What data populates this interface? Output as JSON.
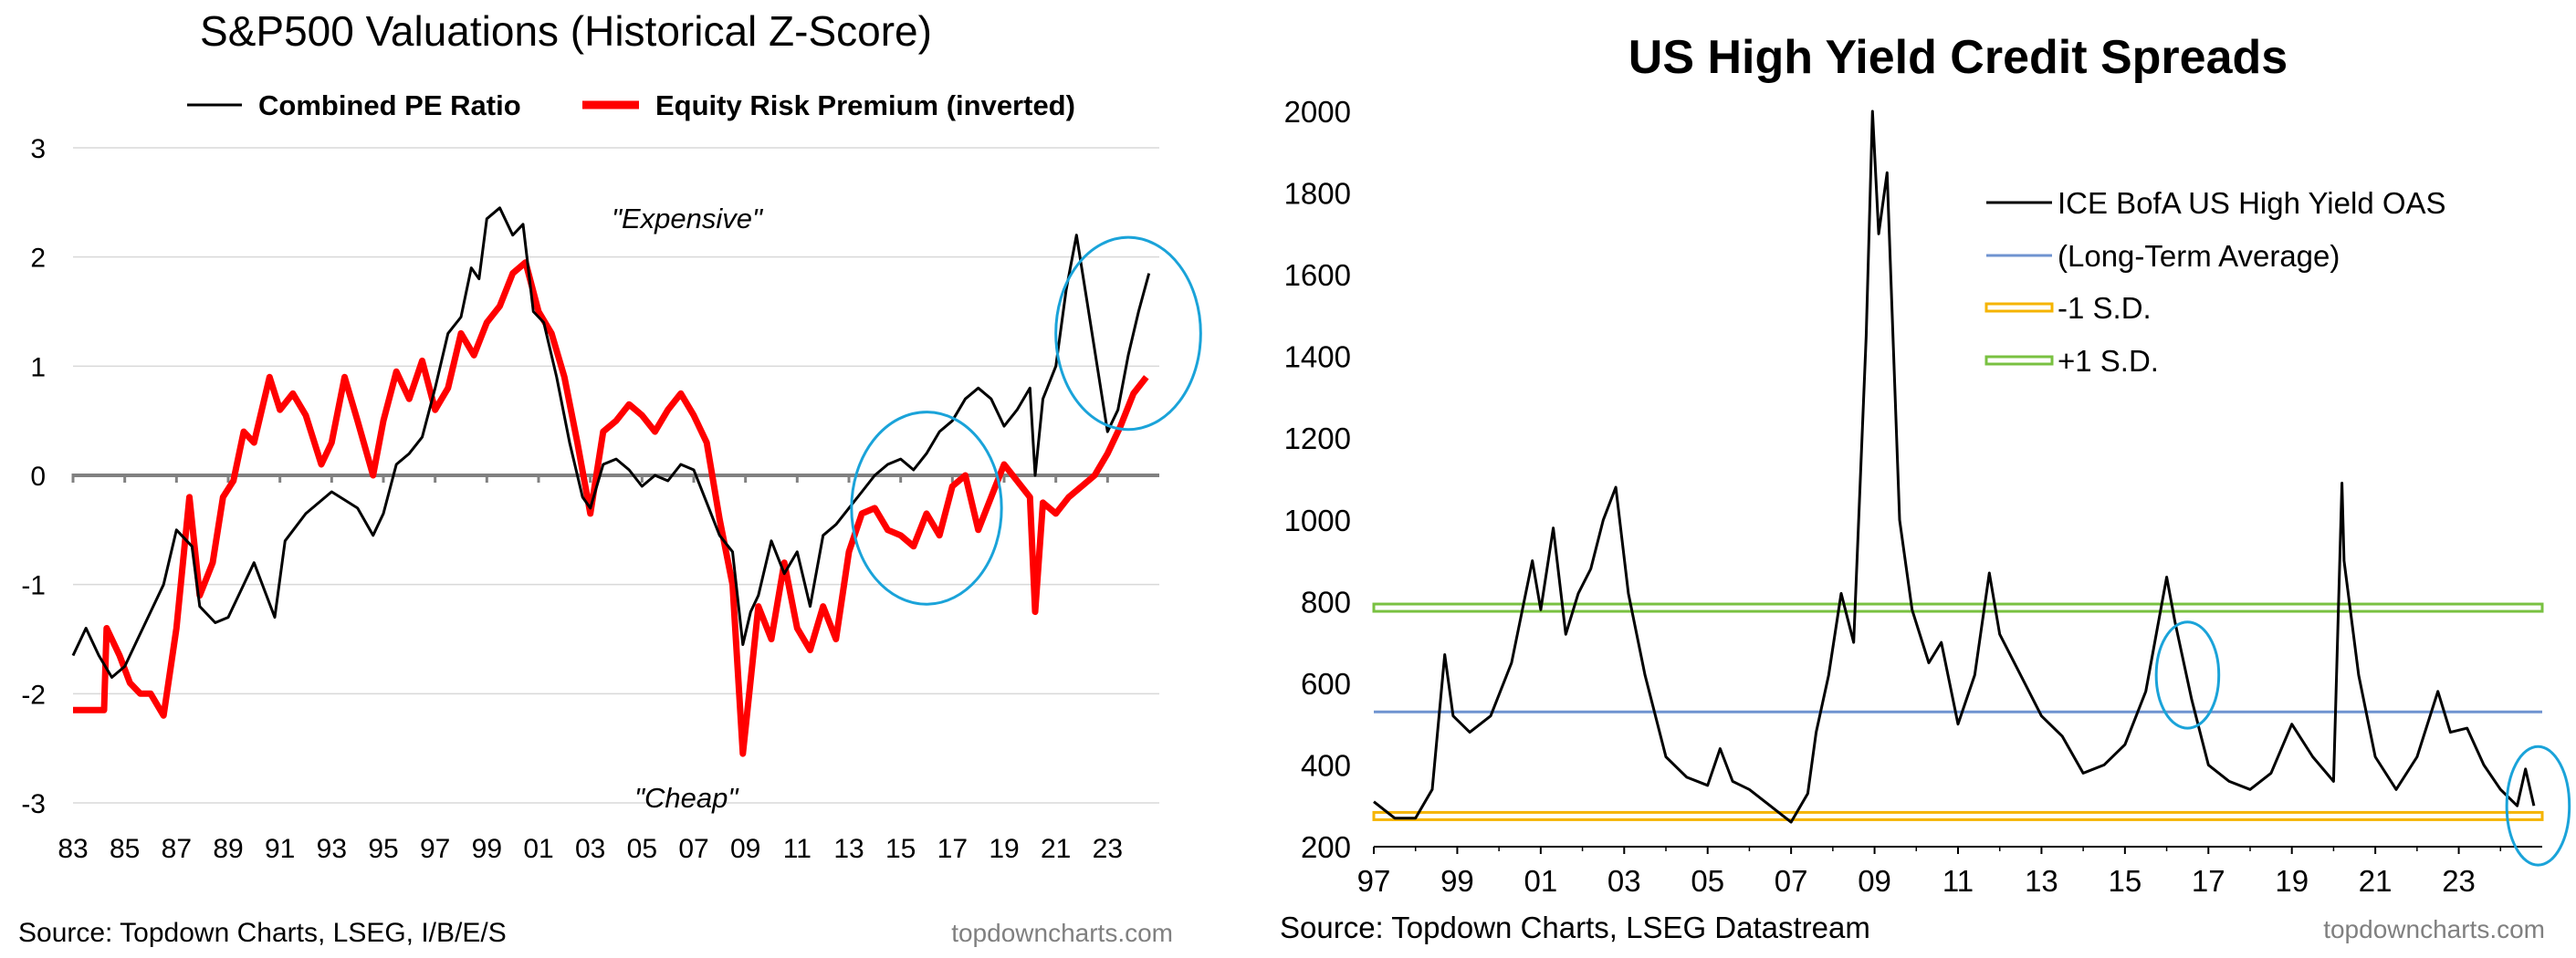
{
  "chart_data": [
    {
      "type": "line",
      "title": "S&P500 Valuations (Historical Z-Score)",
      "xlabel": "",
      "ylabel": "",
      "ylim": [
        -3,
        3
      ],
      "yticks": [
        "3",
        "2",
        "1",
        "0",
        "-1",
        "-2",
        "-3"
      ],
      "xticks": [
        "83",
        "85",
        "87",
        "89",
        "91",
        "93",
        "95",
        "97",
        "99",
        "01",
        "03",
        "05",
        "07",
        "09",
        "11",
        "13",
        "15",
        "17",
        "19",
        "21",
        "23"
      ],
      "x_range": [
        1983,
        2025
      ],
      "zero_line": true,
      "annotations": [
        {
          "text": "\"Expensive\"",
          "x": 2001.6,
          "y": 2.4
        },
        {
          "text": "\"Cheap\"",
          "x": 2003.4,
          "y": -2.55
        }
      ],
      "circles": [
        {
          "color": "#1AA3D9",
          "x": 2016.0,
          "y": -0.3,
          "rx": 2.9,
          "ry": 0.88
        },
        {
          "color": "#1AA3D9",
          "x": 2023.8,
          "y": 1.3,
          "rx": 2.8,
          "ry": 0.88
        }
      ],
      "series": [
        {
          "name": "Combined PE Ratio",
          "color": "#000000",
          "x": [
            1983.0,
            1983.5,
            1984.0,
            1984.5,
            1985.0,
            1985.5,
            1986.0,
            1986.5,
            1987.0,
            1987.6,
            1987.9,
            1988.5,
            1989.0,
            1989.5,
            1990.0,
            1990.8,
            1991.2,
            1992.0,
            1993.0,
            1994.0,
            1994.6,
            1995.0,
            1995.5,
            1996.0,
            1996.5,
            1997.0,
            1997.5,
            1998.0,
            1998.4,
            1998.7,
            1999.0,
            1999.5,
            2000.0,
            2000.4,
            2000.8,
            2001.2,
            2001.7,
            2002.2,
            2002.7,
            2003.0,
            2003.5,
            2004.0,
            2004.5,
            2005.0,
            2005.5,
            2006.0,
            2006.5,
            2007.0,
            2007.5,
            2008.0,
            2008.5,
            2008.9,
            2009.2,
            2009.5,
            2010.0,
            2010.5,
            2011.0,
            2011.5,
            2012.0,
            2012.5,
            2013.0,
            2013.5,
            2014.0,
            2014.5,
            2015.0,
            2015.5,
            2016.0,
            2016.5,
            2017.0,
            2017.5,
            2018.0,
            2018.5,
            2019.0,
            2019.5,
            2020.0,
            2020.2,
            2020.5,
            2021.0,
            2021.4,
            2021.8,
            2022.2,
            2022.6,
            2023.0,
            2023.4,
            2023.8,
            2024.2,
            2024.6
          ],
          "values": [
            -1.65,
            -1.4,
            -1.65,
            -1.85,
            -1.75,
            -1.5,
            -1.25,
            -1.0,
            -0.5,
            -0.65,
            -1.2,
            -1.35,
            -1.3,
            -1.05,
            -0.8,
            -1.3,
            -0.6,
            -0.35,
            -0.15,
            -0.3,
            -0.55,
            -0.35,
            0.1,
            0.2,
            0.35,
            0.8,
            1.3,
            1.45,
            1.9,
            1.8,
            2.35,
            2.45,
            2.2,
            2.3,
            1.5,
            1.4,
            0.9,
            0.3,
            -0.2,
            -0.3,
            0.1,
            0.15,
            0.05,
            -0.1,
            0.0,
            -0.05,
            0.1,
            0.05,
            -0.25,
            -0.55,
            -0.7,
            -1.55,
            -1.25,
            -1.1,
            -0.6,
            -0.9,
            -0.7,
            -1.2,
            -0.55,
            -0.45,
            -0.3,
            -0.15,
            0.0,
            0.1,
            0.15,
            0.05,
            0.2,
            0.4,
            0.5,
            0.7,
            0.8,
            0.7,
            0.45,
            0.6,
            0.8,
            0.0,
            0.7,
            1.0,
            1.7,
            2.2,
            1.6,
            1.0,
            0.4,
            0.6,
            1.1,
            1.5,
            1.85
          ]
        },
        {
          "name": "Equity Risk Premium (inverted)",
          "color": "#FF0000",
          "x": [
            1983.0,
            1984.2,
            1984.3,
            1984.8,
            1985.2,
            1985.6,
            1986.0,
            1986.5,
            1987.0,
            1987.5,
            1987.9,
            1988.4,
            1988.8,
            1989.2,
            1989.6,
            1990.0,
            1990.6,
            1991.0,
            1991.5,
            1992.0,
            1992.6,
            1993.0,
            1993.5,
            1994.0,
            1994.6,
            1995.0,
            1995.5,
            1996.0,
            1996.5,
            1997.0,
            1997.5,
            1998.0,
            1998.5,
            1999.0,
            1999.5,
            2000.0,
            2000.5,
            2001.0,
            2001.5,
            2002.0,
            2002.5,
            2003.0,
            2003.5,
            2004.0,
            2004.5,
            2005.0,
            2005.5,
            2006.0,
            2006.5,
            2007.0,
            2007.5,
            2008.0,
            2008.5,
            2008.9,
            2009.1,
            2009.5,
            2010.0,
            2010.5,
            2011.0,
            2011.5,
            2012.0,
            2012.5,
            2013.0,
            2013.5,
            2014.0,
            2014.5,
            2015.0,
            2015.5,
            2016.0,
            2016.5,
            2017.0,
            2017.5,
            2018.0,
            2018.5,
            2019.0,
            2019.5,
            2020.0,
            2020.2,
            2020.5,
            2021.0,
            2021.5,
            2022.0,
            2022.5,
            2023.0,
            2023.5,
            2024.0,
            2024.5
          ],
          "values": [
            -2.15,
            -2.15,
            -1.4,
            -1.65,
            -1.9,
            -2.0,
            -2.0,
            -2.2,
            -1.4,
            -0.2,
            -1.1,
            -0.8,
            -0.2,
            -0.05,
            0.4,
            0.3,
            0.9,
            0.6,
            0.75,
            0.55,
            0.1,
            0.3,
            0.9,
            0.5,
            0.0,
            0.5,
            0.95,
            0.7,
            1.05,
            0.6,
            0.8,
            1.3,
            1.1,
            1.4,
            1.55,
            1.85,
            1.95,
            1.5,
            1.3,
            0.9,
            0.3,
            -0.35,
            0.4,
            0.5,
            0.65,
            0.55,
            0.4,
            0.6,
            0.75,
            0.55,
            0.3,
            -0.4,
            -1.0,
            -2.55,
            -2.1,
            -1.2,
            -1.5,
            -0.8,
            -1.4,
            -1.6,
            -1.2,
            -1.5,
            -0.7,
            -0.35,
            -0.3,
            -0.5,
            -0.55,
            -0.65,
            -0.35,
            -0.55,
            -0.1,
            0.0,
            -0.5,
            -0.2,
            0.1,
            -0.05,
            -0.2,
            -1.25,
            -0.25,
            -0.35,
            -0.2,
            -0.1,
            0.0,
            0.2,
            0.45,
            0.75,
            0.9
          ]
        }
      ],
      "source": "Source: Topdown Charts, LSEG, I/B/E/S",
      "watermark": "topdowncharts.com"
    },
    {
      "type": "line",
      "title": "US High Yield Credit Spreads",
      "xlabel": "",
      "ylabel": "",
      "ylim": [
        200,
        2000
      ],
      "yticks": [
        "2000",
        "1800",
        "1600",
        "1400",
        "1200",
        "1000",
        "800",
        "600",
        "400",
        "200"
      ],
      "xticks": [
        "97",
        "99",
        "01",
        "03",
        "05",
        "07",
        "09",
        "11",
        "13",
        "15",
        "17",
        "19",
        "21",
        "23"
      ],
      "x_range": [
        1997,
        2025
      ],
      "reference_lines": [
        {
          "name": "(Long-Term Average)",
          "value": 530,
          "color": "#6F93D0"
        },
        {
          "name": "-1 S.D.",
          "value": 275,
          "color": "#F5B400"
        },
        {
          "name": "+1 S.D.",
          "value": 785,
          "color": "#79C141"
        }
      ],
      "circles": [
        {
          "color": "#1AA3D9",
          "x": 2016.5,
          "y": 620,
          "rx": 0.75,
          "ry": 130
        },
        {
          "color": "#1AA3D9",
          "x": 2024.9,
          "y": 300,
          "rx": 0.75,
          "ry": 145
        }
      ],
      "series": [
        {
          "name": "ICE BofA US High Yield OAS",
          "color": "#000000",
          "x": [
            1997.0,
            1997.5,
            1998.0,
            1998.4,
            1998.7,
            1998.9,
            1999.3,
            1999.8,
            2000.3,
            2000.8,
            2001.0,
            2001.3,
            2001.6,
            2001.9,
            2002.2,
            2002.5,
            2002.8,
            2003.1,
            2003.5,
            2004.0,
            2004.5,
            2005.0,
            2005.3,
            2005.6,
            2006.0,
            2006.5,
            2007.0,
            2007.4,
            2007.6,
            2007.9,
            2008.2,
            2008.5,
            2008.8,
            2008.95,
            2009.1,
            2009.3,
            2009.6,
            2009.9,
            2010.3,
            2010.6,
            2011.0,
            2011.4,
            2011.75,
            2012.0,
            2012.5,
            2013.0,
            2013.5,
            2014.0,
            2014.5,
            2015.0,
            2015.5,
            2016.0,
            2016.2,
            2016.6,
            2017.0,
            2017.5,
            2018.0,
            2018.5,
            2019.0,
            2019.5,
            2020.0,
            2020.2,
            2020.25,
            2020.6,
            2021.0,
            2021.5,
            2022.0,
            2022.5,
            2022.8,
            2023.2,
            2023.6,
            2024.0,
            2024.4,
            2024.6,
            2024.8
          ],
          "values": [
            310,
            270,
            270,
            340,
            670,
            520,
            480,
            520,
            650,
            900,
            780,
            980,
            720,
            820,
            880,
            1000,
            1080,
            820,
            620,
            420,
            370,
            350,
            440,
            360,
            340,
            300,
            260,
            330,
            480,
            620,
            820,
            700,
            1450,
            2000,
            1700,
            1850,
            1000,
            780,
            650,
            700,
            500,
            620,
            870,
            720,
            620,
            520,
            470,
            380,
            400,
            450,
            580,
            860,
            750,
            560,
            400,
            360,
            340,
            380,
            500,
            420,
            360,
            1090,
            900,
            620,
            420,
            340,
            420,
            580,
            480,
            490,
            400,
            340,
            300,
            390,
            300
          ]
        }
      ],
      "source": "Source: Topdown Charts, LSEG Datastream",
      "watermark": "topdowncharts.com"
    }
  ]
}
